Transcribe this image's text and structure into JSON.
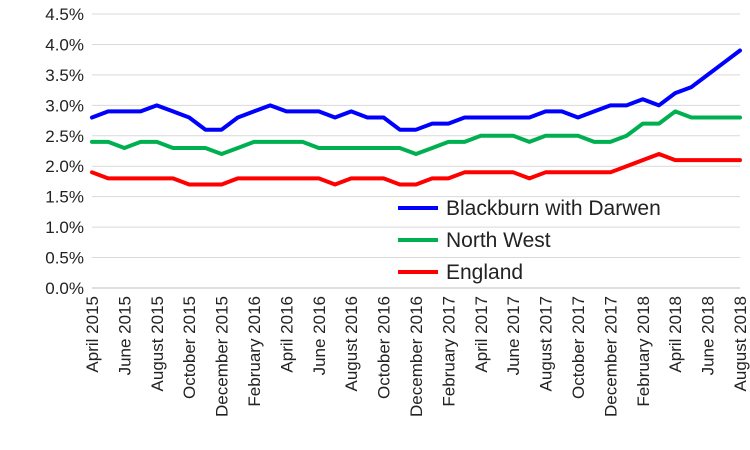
{
  "chart_data": {
    "type": "line",
    "title": "",
    "xlabel": "",
    "ylabel": "",
    "ylim": [
      0,
      4.5
    ],
    "y_ticks": [
      "0.0%",
      "0.5%",
      "1.0%",
      "1.5%",
      "2.0%",
      "2.5%",
      "3.0%",
      "3.5%",
      "4.0%",
      "4.5%"
    ],
    "grid": "horizontal",
    "legend_position": "inside-bottom-right",
    "x": [
      "April 2015",
      "May 2015",
      "June 2015",
      "July 2015",
      "August 2015",
      "September 2015",
      "October 2015",
      "November 2015",
      "December 2015",
      "January 2016",
      "February 2016",
      "March 2016",
      "April 2016",
      "May 2016",
      "June 2016",
      "July 2016",
      "August 2016",
      "September 2016",
      "October 2016",
      "November 2016",
      "December 2016",
      "January 2017",
      "February 2017",
      "March 2017",
      "April 2017",
      "May 2017",
      "June 2017",
      "July 2017",
      "August 2017",
      "September 2017",
      "October 2017",
      "November 2017",
      "December 2017",
      "January 2018",
      "February 2018",
      "March 2018",
      "April 2018",
      "May 2018",
      "June 2018",
      "July 2018",
      "August 2018"
    ],
    "x_tick_labels": [
      "April 2015",
      "June 2015",
      "August 2015",
      "October 2015",
      "December 2015",
      "February 2016",
      "April 2016",
      "June 2016",
      "August 2016",
      "October 2016",
      "December 2016",
      "February 2017",
      "April 2017",
      "June 2017",
      "August 2017",
      "October 2017",
      "December 2017",
      "February 2018",
      "April 2018",
      "June 2018",
      "August 2018"
    ],
    "series": [
      {
        "name": "Blackburn with Darwen",
        "color": "#0000ff",
        "values": [
          2.8,
          2.9,
          2.9,
          2.9,
          3.0,
          2.9,
          2.8,
          2.6,
          2.6,
          2.8,
          2.9,
          3.0,
          2.9,
          2.9,
          2.9,
          2.8,
          2.9,
          2.8,
          2.8,
          2.6,
          2.6,
          2.7,
          2.7,
          2.8,
          2.8,
          2.8,
          2.8,
          2.8,
          2.9,
          2.9,
          2.8,
          2.9,
          3.0,
          3.0,
          3.1,
          3.0,
          3.2,
          3.3,
          3.5,
          3.7,
          3.9
        ]
      },
      {
        "name": "North West",
        "color": "#00b050",
        "values": [
          2.4,
          2.4,
          2.3,
          2.4,
          2.4,
          2.3,
          2.3,
          2.3,
          2.2,
          2.3,
          2.4,
          2.4,
          2.4,
          2.4,
          2.3,
          2.3,
          2.3,
          2.3,
          2.3,
          2.3,
          2.2,
          2.3,
          2.4,
          2.4,
          2.5,
          2.5,
          2.5,
          2.4,
          2.5,
          2.5,
          2.5,
          2.4,
          2.4,
          2.5,
          2.7,
          2.7,
          2.9,
          2.8,
          2.8,
          2.8,
          2.8
        ]
      },
      {
        "name": "England",
        "color": "#ff0000",
        "values": [
          1.9,
          1.8,
          1.8,
          1.8,
          1.8,
          1.8,
          1.7,
          1.7,
          1.7,
          1.8,
          1.8,
          1.8,
          1.8,
          1.8,
          1.8,
          1.7,
          1.8,
          1.8,
          1.8,
          1.7,
          1.7,
          1.8,
          1.8,
          1.9,
          1.9,
          1.9,
          1.9,
          1.8,
          1.9,
          1.9,
          1.9,
          1.9,
          1.9,
          2.0,
          2.1,
          2.2,
          2.1,
          2.1,
          2.1,
          2.1,
          2.1
        ]
      }
    ]
  }
}
